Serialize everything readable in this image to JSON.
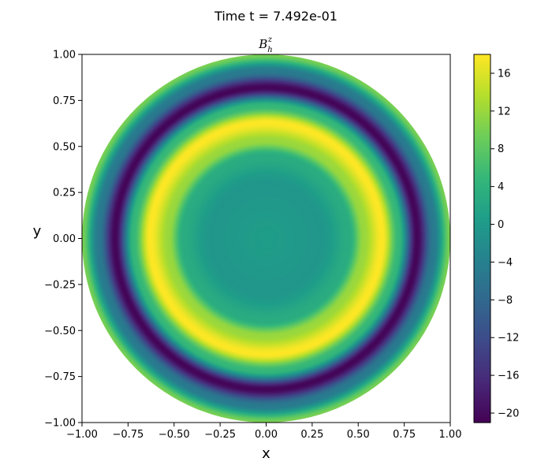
{
  "suptitle": "Time t =  7.492e-01",
  "chart_data": {
    "type": "heatmap",
    "subtype": "filled contour on unit disk",
    "title": {
      "base": "B",
      "sub": "h",
      "sup": "z"
    },
    "xlabel": "x",
    "ylabel": "y",
    "xlim": [
      -1.0,
      1.0
    ],
    "ylim": [
      -1.0,
      1.0
    ],
    "x_ticks": [
      "−1.00",
      "−0.75",
      "−0.50",
      "−0.25",
      "0.00",
      "0.25",
      "0.50",
      "0.75",
      "1.00"
    ],
    "x_tick_values": [
      -1.0,
      -0.75,
      -0.5,
      -0.25,
      0.0,
      0.25,
      0.5,
      0.75,
      1.0
    ],
    "y_ticks": [
      "−1.00",
      "−0.75",
      "−0.50",
      "−0.25",
      "0.00",
      "0.25",
      "0.50",
      "0.75",
      "1.00"
    ],
    "y_tick_values": [
      -1.0,
      -0.75,
      -0.5,
      -0.25,
      0.0,
      0.25,
      0.5,
      0.75,
      1.0
    ],
    "grid": false,
    "colormap": "viridis",
    "colorbar": {
      "range": [
        -21,
        18
      ],
      "ticks": [
        "−20",
        "−16",
        "−12",
        "−8",
        "−4",
        "0",
        "4",
        "8",
        "12",
        "16"
      ],
      "tick_values": [
        -20,
        -16,
        -12,
        -8,
        -4,
        0,
        4,
        8,
        12,
        16
      ]
    },
    "radial_profile": [
      {
        "r": 0.0,
        "value": 0.5
      },
      {
        "r": 0.3,
        "value": -0.5
      },
      {
        "r": 0.45,
        "value": 3
      },
      {
        "r": 0.53,
        "value": 12
      },
      {
        "r": 0.63,
        "value": 18
      },
      {
        "r": 0.72,
        "value": 5
      },
      {
        "r": 0.82,
        "value": -20.5
      },
      {
        "r": 0.91,
        "value": -5
      },
      {
        "r": 1.0,
        "value": 10
      }
    ]
  }
}
